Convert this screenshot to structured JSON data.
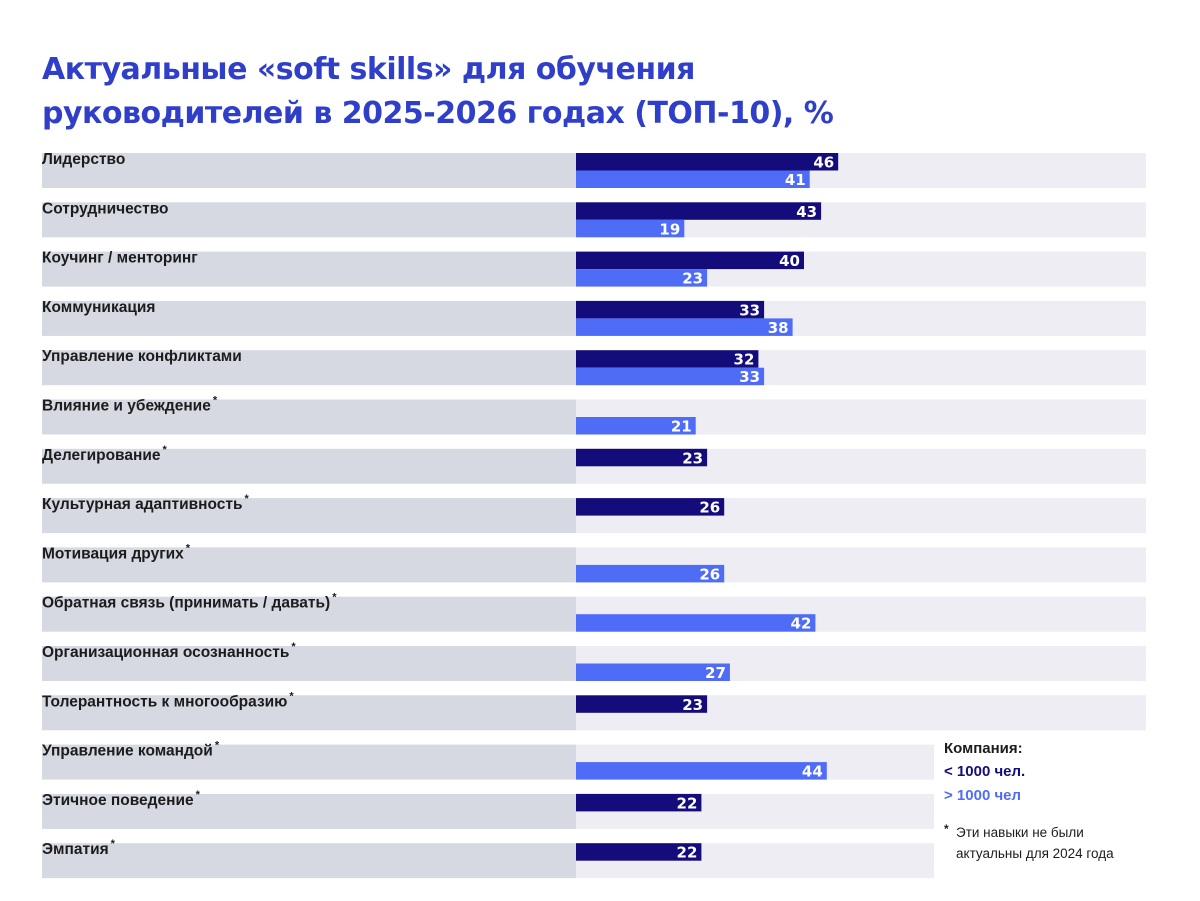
{
  "title": {
    "line1": "Актуальные «soft skills» для обучения",
    "line2": "руководителей в 2025-2026 годах (ТОП-10), %"
  },
  "legend": {
    "title": "Компания:",
    "small": "< 1000 чел.",
    "large": "> 1000 чел",
    "note_mark": "*",
    "note_line1": "Эти навыки не были",
    "note_line2": "актуальны для 2024 года"
  },
  "colors": {
    "small": "#140c7a",
    "large": "#4f6cf7",
    "title": "#2f3fc9",
    "label_band": "#d6d9e2",
    "track_band": "#ededf3"
  },
  "chart_data": {
    "type": "bar",
    "orientation": "horizontal",
    "title": "Актуальные «soft skills» для обучения руководителей в 2025-2026 годах (ТОП-10), %",
    "categories": [
      "Лидерство",
      "Сотрудничество",
      "Коучинг / менторинг",
      "Коммуникация",
      "Управление конфликтами",
      "Влияние и убеждение",
      "Делегирование",
      "Культурная адаптивность",
      "Мотивация других",
      "Обратная связь (принимать / давать)",
      "Организационная осознанность",
      "Толерантность к многообразию",
      "Управление командой",
      "Этичное поведение",
      "Эмпатия"
    ],
    "starred": [
      false,
      false,
      false,
      false,
      false,
      true,
      true,
      true,
      true,
      true,
      true,
      true,
      true,
      true,
      true
    ],
    "series": [
      {
        "name": "< 1000 чел.",
        "values": [
          46,
          43,
          40,
          33,
          32,
          null,
          23,
          26,
          null,
          null,
          null,
          23,
          null,
          22,
          22
        ]
      },
      {
        "name": "> 1000 чел",
        "values": [
          41,
          19,
          23,
          38,
          33,
          21,
          null,
          null,
          26,
          42,
          27,
          null,
          44,
          null,
          null
        ]
      }
    ],
    "xlim": [
      0,
      100
    ],
    "legend_position": "bottom-right"
  }
}
